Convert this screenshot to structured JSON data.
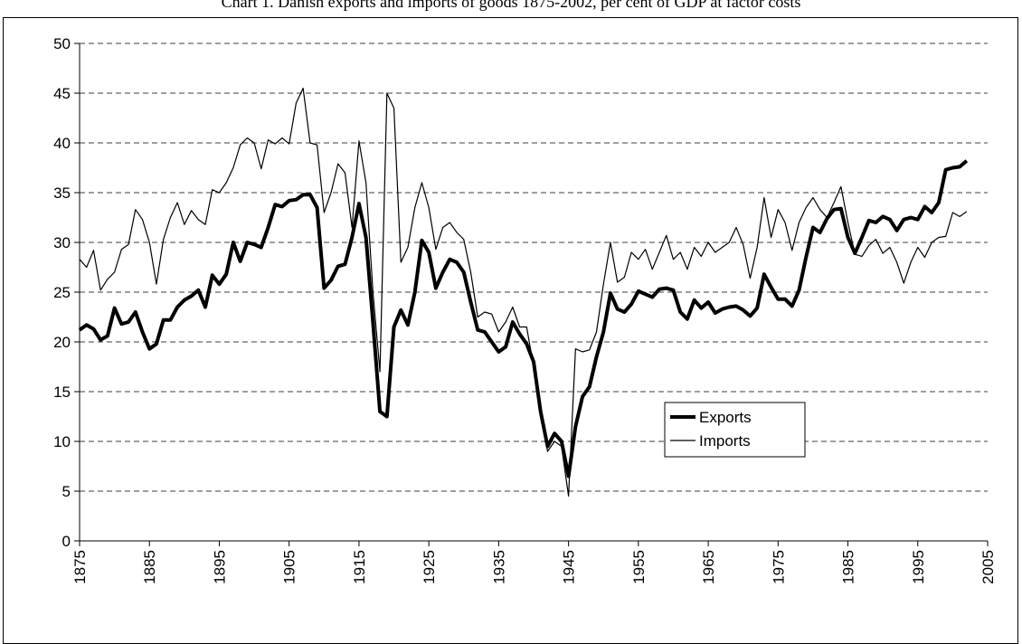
{
  "chart_data": {
    "type": "line",
    "title": "Chart 1.  Danish exports and imports of goods 1875-2002, per cent of GDP at factor costs",
    "x": [
      1875,
      1876,
      1877,
      1878,
      1879,
      1880,
      1881,
      1882,
      1883,
      1884,
      1885,
      1886,
      1887,
      1888,
      1889,
      1890,
      1891,
      1892,
      1893,
      1894,
      1895,
      1896,
      1897,
      1898,
      1899,
      1900,
      1901,
      1902,
      1903,
      1904,
      1905,
      1906,
      1907,
      1908,
      1909,
      1910,
      1911,
      1912,
      1913,
      1914,
      1915,
      1916,
      1917,
      1918,
      1919,
      1920,
      1921,
      1922,
      1923,
      1924,
      1925,
      1926,
      1927,
      1928,
      1929,
      1930,
      1931,
      1932,
      1933,
      1934,
      1935,
      1936,
      1937,
      1938,
      1939,
      1940,
      1941,
      1942,
      1943,
      1944,
      1945,
      1946,
      1947,
      1948,
      1949,
      1950,
      1951,
      1952,
      1953,
      1954,
      1955,
      1956,
      1957,
      1958,
      1959,
      1960,
      1961,
      1962,
      1963,
      1964,
      1965,
      1966,
      1967,
      1968,
      1969,
      1970,
      1971,
      1972,
      1973,
      1974,
      1975,
      1976,
      1977,
      1978,
      1979,
      1980,
      1981,
      1982,
      1983,
      1984,
      1985,
      1986,
      1987,
      1988,
      1989,
      1990,
      1991,
      1992,
      1993,
      1994,
      1995,
      1996,
      1997,
      1998,
      1999,
      2000,
      2001,
      2002
    ],
    "series": [
      {
        "name": "Exports",
        "color": "#000000",
        "width": 4,
        "values": [
          21.2,
          21.7,
          21.3,
          20.2,
          20.6,
          23.4,
          21.8,
          22.0,
          23.0,
          21.0,
          19.3,
          19.8,
          22.2,
          22.2,
          23.5,
          24.2,
          24.6,
          25.2,
          23.5,
          26.7,
          25.8,
          26.8,
          30.0,
          28.1,
          30.0,
          29.8,
          29.5,
          31.5,
          33.8,
          33.6,
          34.2,
          34.3,
          34.8,
          34.8,
          33.5,
          25.4,
          26.2,
          27.6,
          27.8,
          30.5,
          33.9,
          30.5,
          22.0,
          13.0,
          12.5,
          21.5,
          23.2,
          21.7,
          25.0,
          30.2,
          29.0,
          25.4,
          27.0,
          28.3,
          28.0,
          27.0,
          24.0,
          21.2,
          21.0,
          20.0,
          19.0,
          19.5,
          22.0,
          20.8,
          19.8,
          18.0,
          13.0,
          9.5,
          10.8,
          10.0,
          6.5,
          11.5,
          14.5,
          15.5,
          18.5,
          21.0,
          24.9,
          23.3,
          23.0,
          23.8,
          25.1,
          24.8,
          24.5,
          25.3,
          25.4,
          25.2,
          23.0,
          22.3,
          24.2,
          23.4,
          24.0,
          22.9,
          23.3,
          23.5,
          23.6,
          23.2,
          22.6,
          23.4,
          26.8,
          25.5,
          24.3,
          24.3,
          23.6,
          25.2,
          28.5,
          31.5,
          31.0,
          32.4,
          33.3,
          33.4,
          30.5,
          28.9,
          30.5,
          32.2,
          32.0,
          32.6,
          32.3,
          31.2,
          32.3,
          32.5,
          32.3,
          33.6,
          33.0,
          34.0,
          37.3,
          37.5,
          37.6,
          38.2
        ]
      },
      {
        "name": "Imports",
        "color": "#000000",
        "width": 1.2,
        "values": [
          28.3,
          27.5,
          29.2,
          25.2,
          26.3,
          27.0,
          29.3,
          29.8,
          33.3,
          32.3,
          30.0,
          25.8,
          30.3,
          32.5,
          34.0,
          31.8,
          33.2,
          32.3,
          31.8,
          35.3,
          35.0,
          36.0,
          37.5,
          39.8,
          40.5,
          40.0,
          37.4,
          40.3,
          39.9,
          40.5,
          39.9,
          44.0,
          45.5,
          40.0,
          39.8,
          33.0,
          35.0,
          37.9,
          37.0,
          31.5,
          40.2,
          36.0,
          25.0,
          17.0,
          45.0,
          43.5,
          28.0,
          29.5,
          33.5,
          36.0,
          33.5,
          29.3,
          31.5,
          32.0,
          31.0,
          30.3,
          27.0,
          22.5,
          23.0,
          22.8,
          21.0,
          22.0,
          23.5,
          21.5,
          21.5,
          17.5,
          12.5,
          9.0,
          10.0,
          9.5,
          4.5,
          19.3,
          19.0,
          19.2,
          21.0,
          25.8,
          30.0,
          26.0,
          26.5,
          29.0,
          28.3,
          29.3,
          27.3,
          29.0,
          30.7,
          28.3,
          29.0,
          27.3,
          29.5,
          28.6,
          30.0,
          29.0,
          29.5,
          30.0,
          31.5,
          29.8,
          26.4,
          29.5,
          34.5,
          30.5,
          33.3,
          32.0,
          29.2,
          32.0,
          33.5,
          34.5,
          33.3,
          32.5,
          34.0,
          35.6,
          32.0,
          28.8,
          28.6,
          29.7,
          30.3,
          28.9,
          29.5,
          28.0,
          25.9,
          28.0,
          29.5,
          28.5,
          30.0,
          30.5,
          30.6,
          33.0,
          32.6,
          33.1
        ]
      }
    ],
    "xlim": [
      1875,
      2005
    ],
    "xticks": [
      1875,
      1885,
      1895,
      1905,
      1915,
      1925,
      1935,
      1945,
      1955,
      1965,
      1975,
      1985,
      1995,
      2005
    ],
    "ylim": [
      0,
      50
    ],
    "yticks": [
      0,
      5,
      10,
      15,
      20,
      25,
      30,
      35,
      40,
      45,
      50
    ],
    "grid": true,
    "legend": "center-right"
  }
}
